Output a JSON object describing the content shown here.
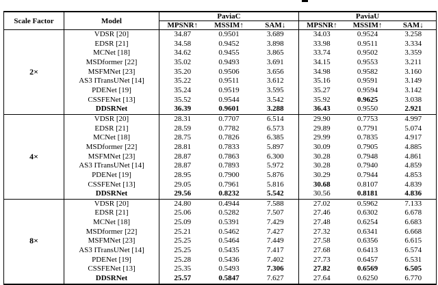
{
  "page": {
    "background": "#ffffff",
    "text_color": "#000000"
  },
  "table": {
    "header": {
      "scale_factor": "Scale Factor",
      "model": "Model"
    },
    "groups": [
      "PaviaC",
      "PaviaU"
    ],
    "metrics": [
      "MPSNR↑",
      "MSSIM↑",
      "SAM↓"
    ],
    "sections": [
      {
        "scale": "2×",
        "rows": [
          {
            "model": "VDSR [20]",
            "model_bold": false,
            "values": [
              "34.87",
              "0.9501",
              "3.689",
              "34.03",
              "0.9524",
              "3.258"
            ],
            "bold": [
              0,
              0,
              0,
              0,
              0,
              0
            ]
          },
          {
            "model": "EDSR [21]",
            "model_bold": false,
            "values": [
              "34.58",
              "0.9452",
              "3.898",
              "33.98",
              "0.9511",
              "3.334"
            ],
            "bold": [
              0,
              0,
              0,
              0,
              0,
              0
            ]
          },
          {
            "model": "MCNet [18]",
            "model_bold": false,
            "values": [
              "34.62",
              "0.9455",
              "3.865",
              "33.74",
              "0.9502",
              "3.359"
            ],
            "bold": [
              0,
              0,
              0,
              0,
              0,
              0
            ]
          },
          {
            "model": "MSDformer [22]",
            "model_bold": false,
            "values": [
              "35.02",
              "0.9493",
              "3.691",
              "34.15",
              "0.9553",
              "3.211"
            ],
            "bold": [
              0,
              0,
              0,
              0,
              0,
              0
            ]
          },
          {
            "model": "MSFMNet [23]",
            "model_bold": false,
            "values": [
              "35.20",
              "0.9506",
              "3.656",
              "34.98",
              "0.9582",
              "3.160"
            ],
            "bold": [
              0,
              0,
              0,
              0,
              0,
              0
            ]
          },
          {
            "model": "AS3 ITransUNet [14]",
            "model_bold": false,
            "values": [
              "35.22",
              "0.9511",
              "3.612",
              "35.16",
              "0.9591",
              "3.149"
            ],
            "bold": [
              0,
              0,
              0,
              0,
              0,
              0
            ]
          },
          {
            "model": "PDENet [19]",
            "model_bold": false,
            "values": [
              "35.24",
              "0.9519",
              "3.595",
              "35.27",
              "0.9594",
              "3.142"
            ],
            "bold": [
              0,
              0,
              0,
              0,
              0,
              0
            ]
          },
          {
            "model": "CSSFENet [13]",
            "model_bold": false,
            "values": [
              "35.52",
              "0.9544",
              "3.542",
              "35.92",
              "0.9625",
              "3.038"
            ],
            "bold": [
              0,
              0,
              0,
              0,
              1,
              0
            ]
          },
          {
            "model": "DDSRNet",
            "model_bold": true,
            "values": [
              "36.39",
              "0.9601",
              "3.288",
              "36.43",
              "0.9550",
              "2.921"
            ],
            "bold": [
              1,
              1,
              1,
              1,
              0,
              1
            ]
          }
        ]
      },
      {
        "scale": "4×",
        "rows": [
          {
            "model": "VDSR [20]",
            "model_bold": false,
            "values": [
              "28.31",
              "0.7707",
              "6.514",
              "29.90",
              "0.7753",
              "4.997"
            ],
            "bold": [
              0,
              0,
              0,
              0,
              0,
              0
            ]
          },
          {
            "model": "EDSR [21]",
            "model_bold": false,
            "values": [
              "28.59",
              "0.7782",
              "6.573",
              "29.89",
              "0.7791",
              "5.074"
            ],
            "bold": [
              0,
              0,
              0,
              0,
              0,
              0
            ]
          },
          {
            "model": "MCNet [18]",
            "model_bold": false,
            "values": [
              "28.75",
              "0.7826",
              "6.385",
              "29.99",
              "0.7835",
              "4.917"
            ],
            "bold": [
              0,
              0,
              0,
              0,
              0,
              0
            ]
          },
          {
            "model": "MSDformer [22]",
            "model_bold": false,
            "values": [
              "28.81",
              "0.7833",
              "5.897",
              "30.09",
              "0.7905",
              "4.885"
            ],
            "bold": [
              0,
              0,
              0,
              0,
              0,
              0
            ]
          },
          {
            "model": "MSFMNet [23]",
            "model_bold": false,
            "values": [
              "28.87",
              "0.7863",
              "6.300",
              "30.28",
              "0.7948",
              "4.861"
            ],
            "bold": [
              0,
              0,
              0,
              0,
              0,
              0
            ]
          },
          {
            "model": "AS3 ITransUNet [14]",
            "model_bold": false,
            "values": [
              "28.87",
              "0.7893",
              "5.972",
              "30.28",
              "0.7940",
              "4.859"
            ],
            "bold": [
              0,
              0,
              0,
              0,
              0,
              0
            ]
          },
          {
            "model": "PDENet [19]",
            "model_bold": false,
            "values": [
              "28.95",
              "0.7900",
              "5.876",
              "30.29",
              "0.7944",
              "4.853"
            ],
            "bold": [
              0,
              0,
              0,
              0,
              0,
              0
            ]
          },
          {
            "model": "CSSFENet [13]",
            "model_bold": false,
            "values": [
              "29.05",
              "0.7961",
              "5.816",
              "30.68",
              "0.8107",
              "4.839"
            ],
            "bold": [
              0,
              0,
              0,
              1,
              0,
              0
            ]
          },
          {
            "model": "DDSRNet",
            "model_bold": true,
            "values": [
              "29.56",
              "0.8232",
              "5.542",
              "30.56",
              "0.8181",
              "4.836"
            ],
            "bold": [
              1,
              1,
              1,
              0,
              1,
              1
            ]
          }
        ]
      },
      {
        "scale": "8×",
        "rows": [
          {
            "model": "VDSR [20]",
            "model_bold": false,
            "values": [
              "24.80",
              "0.4944",
              "7.588",
              "27.02",
              "0.5962",
              "7.133"
            ],
            "bold": [
              0,
              0,
              0,
              0,
              0,
              0
            ]
          },
          {
            "model": "EDSR [21]",
            "model_bold": false,
            "values": [
              "25.06",
              "0.5282",
              "7.507",
              "27.46",
              "0.6302",
              "6.678"
            ],
            "bold": [
              0,
              0,
              0,
              0,
              0,
              0
            ]
          },
          {
            "model": "MCNet [18]",
            "model_bold": false,
            "values": [
              "25.09",
              "0.5391",
              "7.429",
              "27.48",
              "0.6254",
              "6.683"
            ],
            "bold": [
              0,
              0,
              0,
              0,
              0,
              0
            ]
          },
          {
            "model": "MSDformer [22]",
            "model_bold": false,
            "values": [
              "25.21",
              "0.5462",
              "7.427",
              "27.32",
              "0.6341",
              "6.668"
            ],
            "bold": [
              0,
              0,
              0,
              0,
              0,
              0
            ]
          },
          {
            "model": "MSFMNet [23]",
            "model_bold": false,
            "values": [
              "25.25",
              "0.5464",
              "7.449",
              "27.58",
              "0.6356",
              "6.615"
            ],
            "bold": [
              0,
              0,
              0,
              0,
              0,
              0
            ]
          },
          {
            "model": "AS3 ITransUNet [14]",
            "model_bold": false,
            "values": [
              "25.25",
              "0.5435",
              "7.417",
              "27.68",
              "0.6413",
              "6.574"
            ],
            "bold": [
              0,
              0,
              0,
              0,
              0,
              0
            ]
          },
          {
            "model": "PDENet [19]",
            "model_bold": false,
            "values": [
              "25.28",
              "0.5436",
              "7.402",
              "27.73",
              "0.6457",
              "6.531"
            ],
            "bold": [
              0,
              0,
              0,
              0,
              0,
              0
            ]
          },
          {
            "model": "CSSFENet [13]",
            "model_bold": false,
            "values": [
              "25.35",
              "0.5493",
              "7.306",
              "27.82",
              "0.6569",
              "6.505"
            ],
            "bold": [
              0,
              0,
              1,
              1,
              1,
              1
            ]
          },
          {
            "model": "DDSRNet",
            "model_bold": true,
            "values": [
              "25.57",
              "0.5847",
              "7.627",
              "27.64",
              "0.6250",
              "6.770"
            ],
            "bold": [
              1,
              1,
              0,
              0,
              0,
              0
            ]
          }
        ]
      }
    ]
  }
}
